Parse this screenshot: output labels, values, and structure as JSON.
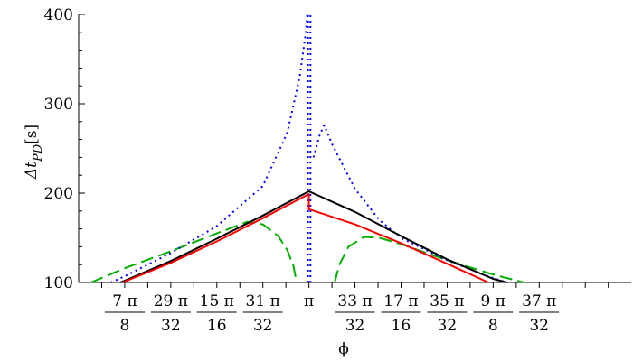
{
  "chart_data": {
    "type": "line",
    "xlabel": "ϕ",
    "ylabel_main": "Δt",
    "ylabel_sub": "PD",
    "ylabel_unit": "[s]",
    "xlim": [
      2.6507,
      3.8288
    ],
    "ylim": [
      100,
      400
    ],
    "grid": false,
    "yticks": [
      {
        "value": 100,
        "label": "100"
      },
      {
        "value": 200,
        "label": "200"
      },
      {
        "value": 300,
        "label": "300"
      },
      {
        "value": 400,
        "label": "400"
      }
    ],
    "xticks": [
      {
        "value": 2.7489,
        "num": "7 π",
        "den": "8"
      },
      {
        "value": 2.8471,
        "num": "29 π",
        "den": "32"
      },
      {
        "value": 2.9452,
        "num": "15 π",
        "den": "16"
      },
      {
        "value": 3.0434,
        "num": "31 π",
        "den": "32"
      },
      {
        "value": 3.1416,
        "num": "π",
        "den": ""
      },
      {
        "value": 3.2398,
        "num": "33 π",
        "den": "32"
      },
      {
        "value": 3.3379,
        "num": "17 π",
        "den": "16"
      },
      {
        "value": 3.4361,
        "num": "35 π",
        "den": "32"
      },
      {
        "value": 3.5343,
        "num": "9 π",
        "den": "8"
      },
      {
        "value": 3.6325,
        "num": "37 π",
        "den": "32"
      }
    ],
    "series": [
      {
        "color": "#00b000",
        "style": "dashed",
        "segments": [
          [
            [
              2.6769,
              100
            ],
            [
              2.7489,
              116
            ],
            [
              2.8471,
              135
            ],
            [
              2.9452,
              155
            ],
            [
              3.0107,
              168
            ],
            [
              3.0434,
              165
            ],
            [
              3.0762,
              152
            ],
            [
              3.0958,
              136
            ],
            [
              3.1089,
              118
            ],
            [
              3.1154,
              100
            ]
          ],
          [
            [
              3.1966,
              100
            ],
            [
              3.2065,
              120
            ],
            [
              3.2261,
              140
            ],
            [
              3.2589,
              151
            ],
            [
              3.2916,
              150
            ],
            [
              3.3379,
              143
            ],
            [
              3.4361,
              125
            ],
            [
              3.5343,
              109
            ],
            [
              3.5998,
              100
            ]
          ]
        ]
      },
      {
        "color": "#0000ff",
        "style": "dotted",
        "segments": [
          [
            [
              2.7194,
              100
            ],
            [
              2.7489,
              107
            ],
            [
              2.8471,
              133
            ],
            [
              2.9452,
              163
            ],
            [
              3.0434,
              208
            ],
            [
              3.0958,
              268
            ],
            [
              3.122,
              330
            ],
            [
              3.1351,
              380
            ],
            [
              3.1383,
              400
            ]
          ],
          [
            [
              3.1396,
              100
            ],
            [
              3.1396,
              400
            ]
          ],
          [
            [
              3.1449,
              100
            ],
            [
              3.1449,
              400
            ]
          ],
          [
            [
              3.1514,
              240
            ],
            [
              3.1645,
              265
            ],
            [
              3.1744,
              276
            ],
            [
              3.1908,
              255
            ],
            [
              3.2398,
              205
            ],
            [
              3.2916,
              170
            ],
            [
              3.3379,
              150
            ],
            [
              3.4361,
              125
            ],
            [
              3.5343,
              105
            ],
            [
              3.5638,
              100
            ]
          ]
        ]
      },
      {
        "color": "#000000",
        "style": "solid",
        "segments": [
          [
            [
              2.739,
              100
            ],
            [
              2.7489,
              102
            ],
            [
              2.8471,
              124
            ],
            [
              2.9452,
              149
            ],
            [
              3.0434,
              175
            ],
            [
              3.1416,
              202
            ],
            [
              3.2398,
              179
            ],
            [
              3.3379,
              152
            ],
            [
              3.4361,
              126
            ],
            [
              3.5343,
              104
            ],
            [
              3.5638,
              100
            ]
          ]
        ]
      },
      {
        "color": "#ff0000",
        "style": "solid",
        "segments": [
          [
            [
              2.7456,
              100
            ],
            [
              2.7489,
              101
            ],
            [
              2.8471,
              122
            ],
            [
              2.9452,
              146
            ],
            [
              3.0434,
              172
            ],
            [
              3.1416,
              199
            ],
            [
              3.1416,
              182
            ],
            [
              3.2398,
              165
            ],
            [
              3.3379,
              144
            ],
            [
              3.4361,
              121
            ],
            [
              3.5245,
              100
            ]
          ]
        ]
      }
    ]
  }
}
